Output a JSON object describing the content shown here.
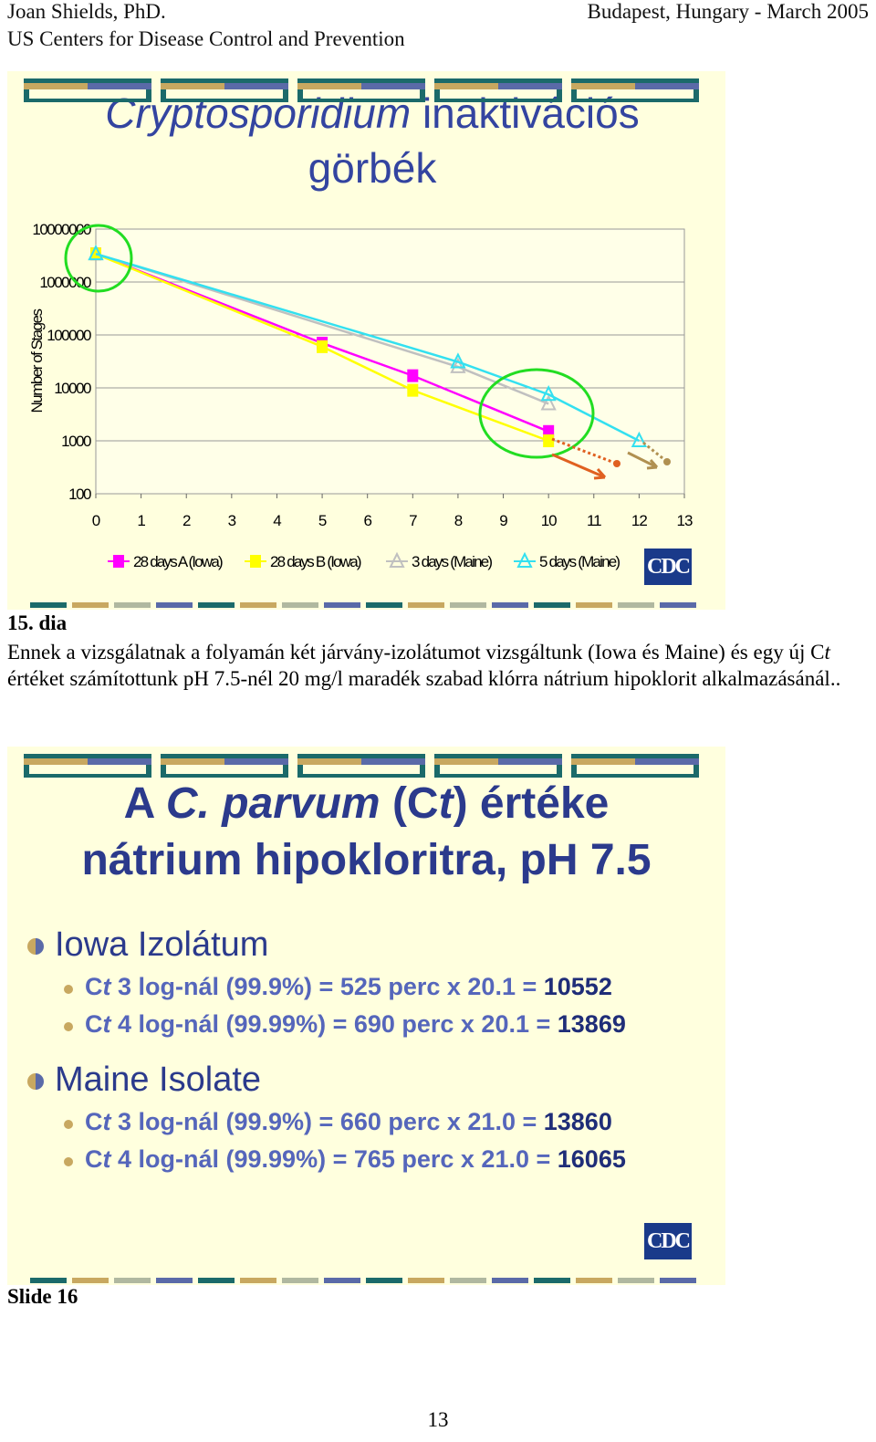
{
  "header": {
    "author": "Joan Shields, PhD.",
    "organization": "US Centers for Disease Control and Prevention",
    "place_date": "Budapest, Hungary - March 2005"
  },
  "chart_data": {
    "type": "line",
    "title": [
      "Cryptosporidium",
      " inaktivációs",
      "görbék"
    ],
    "y_label": "Number of Stages",
    "log_y": true,
    "grid": true,
    "xlim": [
      0,
      13
    ],
    "xticks": [
      0,
      1,
      2,
      3,
      4,
      5,
      6,
      7,
      8,
      9,
      10,
      11,
      12,
      13
    ],
    "ylim": [
      100,
      10000000
    ],
    "yticks": [
      100,
      1000,
      10000,
      100000,
      1000000,
      10000000
    ],
    "series": [
      {
        "name": "28 days A (Iowa)",
        "color": "#ff00ff",
        "marker": "square",
        "x": [
          0,
          5,
          7,
          10
        ],
        "values": [
          3400000,
          70000,
          17000,
          1500
        ]
      },
      {
        "name": "28 days B (Iowa)",
        "color": "#ffff00",
        "marker": "square",
        "x": [
          0,
          5,
          7,
          10
        ],
        "values": [
          3400000,
          60000,
          9000,
          1000
        ]
      },
      {
        "name": "3 days (Maine)",
        "color": "#c0c0c0",
        "marker": "triangle",
        "x": [
          0,
          8,
          10
        ],
        "values": [
          3400000,
          25000,
          5000
        ]
      },
      {
        "name": "5 days (Maine)",
        "color": "#33e0f0",
        "marker": "triangle",
        "x": [
          0,
          8,
          10,
          12
        ],
        "values": [
          3400000,
          31000,
          7500,
          1000
        ]
      }
    ]
  },
  "logo": "CDC",
  "caption": {
    "number": "15. dia",
    "text": [
      "Ennek a vizsgálatnak a folyamán két járvány-izolátumot vizsgáltunk (Iowa és Maine) és egy új C",
      "t",
      " értéket számítottunk  pH 7.5-nél 20 mg/l maradék szabad klórra nátrium hipoklorit alkalmazásánál.."
    ]
  },
  "slide2": {
    "title": [
      "A ",
      "C. parvum",
      " (C",
      "t",
      ") értéke",
      "nátrium hipokloritra, pH 7.5"
    ],
    "sections": [
      {
        "heading": "Iowa Izolátum",
        "items": [
          [
            "C",
            "t",
            " 3 log-nál (99.9%) = 525 perc x 20.1 = ",
            "10552"
          ],
          [
            "C",
            "t",
            " 4 log-nál (99.99%) = 690 perc x 20.1 = ",
            "13869"
          ]
        ]
      },
      {
        "heading": "Maine Isolate",
        "items": [
          [
            "C",
            "t",
            " 3 log-nál (99.9%) = 660 perc x 21.0 = ",
            "13860"
          ],
          [
            "C",
            "t",
            " 4 log-nál (99.99%) = 765 perc x 21.0 = ",
            "16065"
          ]
        ]
      }
    ]
  },
  "footer": {
    "slide": "Slide 16",
    "page": "13"
  }
}
